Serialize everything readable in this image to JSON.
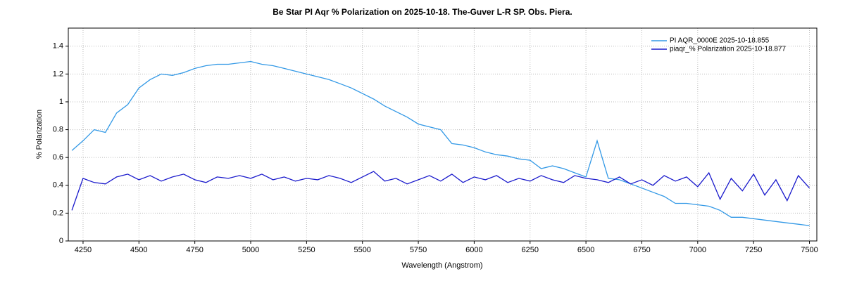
{
  "chart_data": {
    "type": "line",
    "title": "Be Star PI Aqr % Polarization  on  2025-10-18. The-Guver L-R SP.  Obs. Piera.",
    "x_label": "Wavelength (Angstrom)",
    "y_label": "% Polarization",
    "x": [
      4200,
      4250,
      4300,
      4350,
      4400,
      4450,
      4500,
      4550,
      4600,
      4650,
      4700,
      4750,
      4800,
      4850,
      4900,
      4950,
      5000,
      5050,
      5100,
      5150,
      5200,
      5250,
      5300,
      5350,
      5400,
      5450,
      5500,
      5550,
      5600,
      5650,
      5700,
      5750,
      5800,
      5850,
      5900,
      5950,
      6000,
      6050,
      6100,
      6150,
      6200,
      6250,
      6300,
      6350,
      6400,
      6450,
      6500,
      6550,
      6600,
      6650,
      6700,
      6750,
      6800,
      6850,
      6900,
      6950,
      7000,
      7050,
      7100,
      7150,
      7200,
      7250,
      7300,
      7350,
      7400,
      7450,
      7500
    ],
    "series": [
      {
        "name": "PI AQR_0000E  2025-10-18.855",
        "color": "#3399e6",
        "values": [
          0.65,
          0.72,
          0.8,
          0.78,
          0.92,
          0.98,
          1.1,
          1.16,
          1.2,
          1.19,
          1.21,
          1.24,
          1.26,
          1.27,
          1.27,
          1.28,
          1.29,
          1.27,
          1.26,
          1.24,
          1.22,
          1.2,
          1.18,
          1.16,
          1.13,
          1.1,
          1.06,
          1.02,
          0.97,
          0.93,
          0.89,
          0.84,
          0.82,
          0.8,
          0.7,
          0.69,
          0.67,
          0.64,
          0.62,
          0.61,
          0.59,
          0.58,
          0.52,
          0.54,
          0.52,
          0.49,
          0.46,
          0.72,
          0.45,
          0.44,
          0.41,
          0.38,
          0.35,
          0.32,
          0.27,
          0.27,
          0.26,
          0.25,
          0.22,
          0.17,
          0.17,
          0.16,
          0.15,
          0.14,
          0.13,
          0.12,
          0.11
        ]
      },
      {
        "name": "piaqr_% Polarization  2025-10-18.877",
        "color": "#1a1acc",
        "values": [
          0.22,
          0.45,
          0.42,
          0.41,
          0.46,
          0.48,
          0.44,
          0.47,
          0.43,
          0.46,
          0.48,
          0.44,
          0.42,
          0.46,
          0.45,
          0.47,
          0.45,
          0.48,
          0.44,
          0.46,
          0.43,
          0.45,
          0.44,
          0.47,
          0.45,
          0.42,
          0.46,
          0.5,
          0.43,
          0.45,
          0.41,
          0.44,
          0.47,
          0.43,
          0.48,
          0.42,
          0.46,
          0.44,
          0.47,
          0.42,
          0.45,
          0.43,
          0.47,
          0.44,
          0.42,
          0.47,
          0.45,
          0.44,
          0.42,
          0.46,
          0.41,
          0.44,
          0.4,
          0.47,
          0.43,
          0.46,
          0.39,
          0.49,
          0.3,
          0.45,
          0.36,
          0.48,
          0.33,
          0.44,
          0.29,
          0.47,
          0.38
        ]
      }
    ],
    "xlim": [
      4184,
      7533
    ],
    "xticks": [
      4250,
      4500,
      4750,
      5000,
      5250,
      5500,
      5750,
      6000,
      6250,
      6500,
      6750,
      7000,
      7250,
      7500
    ],
    "ylim": [
      0,
      1.53
    ],
    "yticks": [
      0,
      0.2,
      0.4,
      0.6,
      0.8,
      1,
      1.2,
      1.4
    ],
    "grid": true,
    "legend": "upper right"
  }
}
